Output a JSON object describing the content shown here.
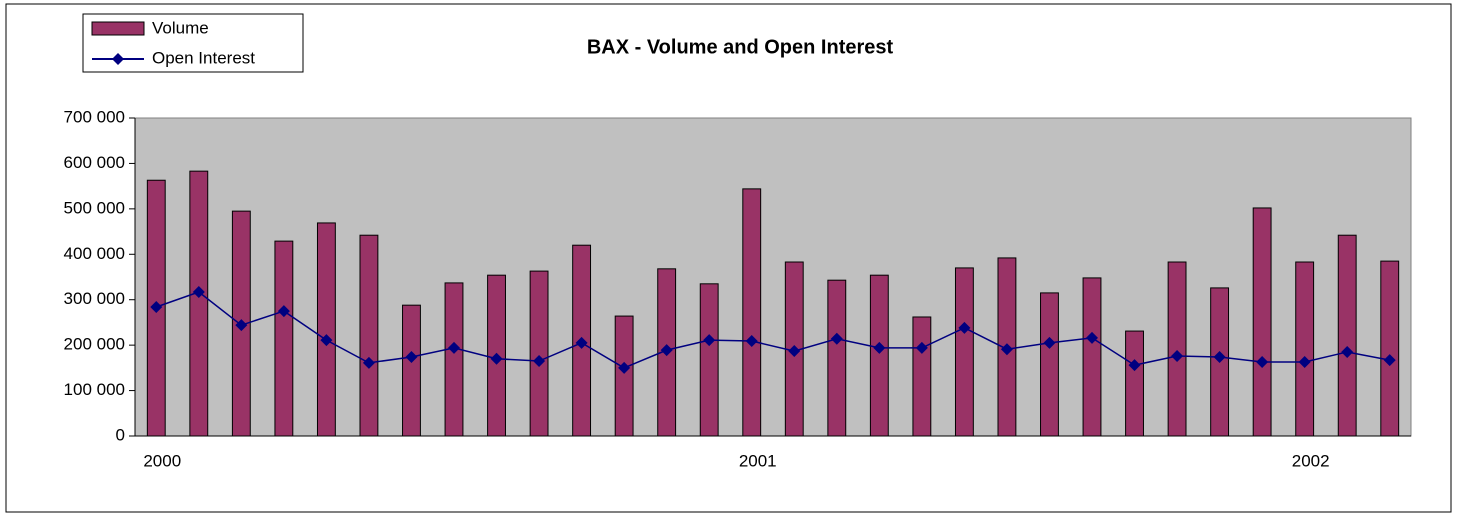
{
  "chart_data": {
    "type": "bar_line",
    "title": "BAX - Volume and Open Interest",
    "categories": [
      "2000",
      null,
      null,
      null,
      null,
      null,
      null,
      null,
      null,
      null,
      null,
      null,
      null,
      null,
      "2001",
      null,
      null,
      null,
      null,
      null,
      null,
      null,
      null,
      null,
      null,
      null,
      null,
      "2002",
      null,
      null
    ],
    "series": [
      {
        "name": "Volume",
        "type": "bar",
        "color": "#993366",
        "values": [
          563000,
          583000,
          495000,
          429000,
          469000,
          442000,
          288000,
          337000,
          354000,
          363000,
          420000,
          264000,
          368000,
          335000,
          544000,
          383000,
          343000,
          354000,
          262000,
          370000,
          392000,
          315000,
          348000,
          231000,
          383000,
          326000,
          502000,
          383000,
          442000,
          385000
        ]
      },
      {
        "name": "Open Interest",
        "type": "line",
        "color": "#000080",
        "values": [
          284000,
          317000,
          244000,
          275000,
          211000,
          161000,
          174000,
          194000,
          170000,
          165000,
          205000,
          150000,
          189000,
          211000,
          209000,
          187000,
          214000,
          194000,
          194000,
          238000,
          191000,
          205000,
          216000,
          156000,
          176000,
          174000,
          163000,
          163000,
          185000,
          167000
        ]
      }
    ],
    "ylim": [
      0,
      700000
    ],
    "yticks": [
      0,
      {
        "value": 100000,
        "label": "100 000"
      },
      {
        "value": 200000,
        "label": "200 000"
      },
      {
        "value": 300000,
        "label": "300 000"
      },
      {
        "value": 400000,
        "label": "400 000"
      },
      {
        "value": 500000,
        "label": "500 000"
      },
      {
        "value": 600000,
        "label": "600 000"
      },
      {
        "value": 700000,
        "label": "700 000"
      }
    ],
    "plot_background": "#c0c0c0",
    "legend": "top-left"
  }
}
